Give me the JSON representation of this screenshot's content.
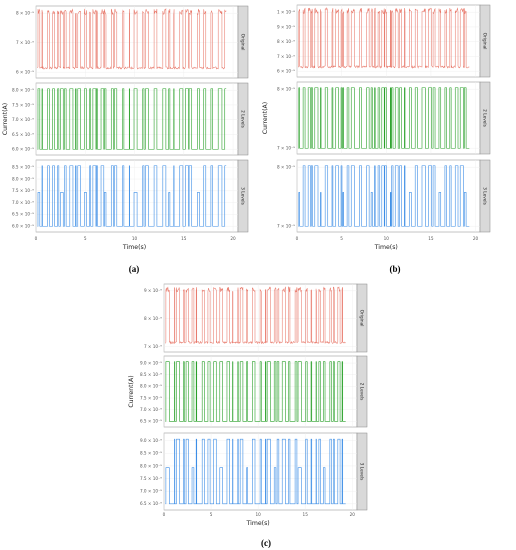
{
  "figure": {
    "captions": [
      "(a)",
      "(b)",
      "(c)"
    ]
  },
  "chart_data": [
    {
      "type": "line",
      "xlabel": "Time(s)",
      "ylabel": "Current(A)",
      "x_ticks": [
        "0",
        "5",
        "10",
        "15",
        "20"
      ],
      "xlim": [
        0,
        20.5
      ],
      "panels": [
        {
          "strip": "Original",
          "color": "#e8786a",
          "y_ticks": [
            "6 × 10⁻⁹",
            "7 × 10⁻⁹",
            "8 × 10⁻⁹"
          ],
          "mode": "noisy"
        },
        {
          "strip": "2 Levels",
          "color": "#2aa12a",
          "y_ticks": [
            "6.0 × 10⁻⁹",
            "6.5 × 10⁻⁹",
            "7.0 × 10⁻⁹",
            "7.5 × 10⁻⁹",
            "8.0 × 10⁻⁹"
          ],
          "mode": "two"
        },
        {
          "strip": "3 Levels",
          "color": "#3d8ee6",
          "y_ticks": [
            "6.0 × 10⁻⁹",
            "6.5 × 10⁻⁹",
            "7.0 × 10⁻⁹",
            "7.5 × 10⁻⁹",
            "8.0 × 10⁻⁹",
            "8.5 × 10⁻⁹"
          ],
          "mode": "three"
        }
      ]
    },
    {
      "type": "line",
      "xlabel": "Time(s)",
      "ylabel": "Current(A)",
      "x_ticks": [
        "0",
        "5",
        "10",
        "15",
        "20"
      ],
      "xlim": [
        0,
        20.5
      ],
      "panels": [
        {
          "strip": "Original",
          "color": "#e8786a",
          "y_ticks": [
            "6 × 10⁻⁹",
            "7 × 10⁻⁹",
            "8 × 10⁻⁹",
            "9 × 10⁻⁹",
            "1 × 10⁻⁸"
          ],
          "mode": "noisy"
        },
        {
          "strip": "2 Levels",
          "color": "#2aa12a",
          "y_ticks": [
            "7 × 10⁻⁹",
            "8 × 10⁻⁹"
          ],
          "mode": "two"
        },
        {
          "strip": "3 Levels",
          "color": "#3d8ee6",
          "y_ticks": [
            "7 × 10⁻⁹",
            "8 × 10⁻⁹"
          ],
          "mode": "three"
        }
      ]
    },
    {
      "type": "line",
      "xlabel": "Time(s)",
      "ylabel": "Current(A)",
      "x_ticks": [
        "0",
        "5",
        "10",
        "15",
        "20"
      ],
      "xlim": [
        0,
        20.5
      ],
      "panels": [
        {
          "strip": "Original",
          "color": "#e8786a",
          "y_ticks": [
            "7 × 10⁻⁹",
            "8 × 10⁻⁹",
            "9 × 10⁻⁹"
          ],
          "mode": "noisy"
        },
        {
          "strip": "2 Levels",
          "color": "#2aa12a",
          "y_ticks": [
            "6.5 × 10⁻⁹",
            "7.0 × 10⁻⁹",
            "7.5 × 10⁻⁹",
            "8.0 × 10⁻⁹",
            "8.5 × 10⁻⁹",
            "9.0 × 10⁻⁹"
          ],
          "mode": "two"
        },
        {
          "strip": "3 Levels",
          "color": "#3d8ee6",
          "y_ticks": [
            "6.5 × 10⁻⁹",
            "7.0 × 10⁻⁹",
            "7.5 × 10⁻⁹",
            "8.0 × 10⁻⁹",
            "8.5 × 10⁻⁹",
            "9.0 × 10⁻⁹"
          ],
          "mode": "three"
        }
      ]
    }
  ]
}
